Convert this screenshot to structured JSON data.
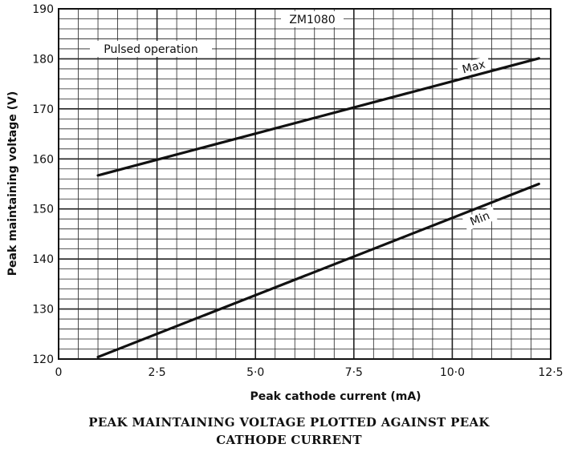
{
  "chart_data": {
    "type": "line",
    "xlabel": "Peak cathode current  (mA)",
    "ylabel": "Peak maintaining voltage (V)",
    "xlim": [
      0,
      12.5
    ],
    "ylim": [
      120,
      190
    ],
    "x_ticks": [
      "0",
      "2·5",
      "5·0",
      "7·5",
      "10·0",
      "12·5"
    ],
    "y_ticks": [
      "120",
      "130",
      "140",
      "150",
      "160",
      "170",
      "180",
      "190"
    ],
    "grid": true,
    "annotations": [
      "ZM1080",
      "Pulsed operation"
    ],
    "series": [
      {
        "name": "Max",
        "x": [
          1.0,
          12.2
        ],
        "y": [
          156.7,
          180.1
        ]
      },
      {
        "name": "Min",
        "x": [
          1.0,
          12.2
        ],
        "y": [
          120.4,
          155.0
        ]
      }
    ]
  },
  "caption": {
    "line1": "PEAK MAINTAINING VOLTAGE PLOTTED AGAINST PEAK",
    "line2": "CATHODE CURRENT"
  }
}
